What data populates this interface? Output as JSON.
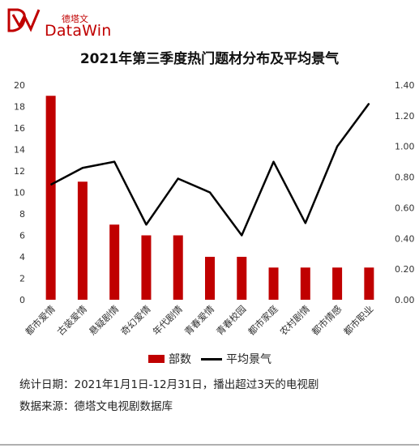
{
  "logo": {
    "sub_text": "德塔文",
    "main_text": "DataWin"
  },
  "chart_data": {
    "type": "bar",
    "title": "2021年第三季度热门题材分布及平均景气",
    "categories": [
      "都市爱情",
      "古装爱情",
      "悬疑剧情",
      "奇幻爱情",
      "年代剧情",
      "青春爱情",
      "青春校园",
      "都市家庭",
      "农村剧情",
      "都市情感",
      "都市职业"
    ],
    "series": [
      {
        "name": "部数",
        "type": "bar",
        "axis": "left",
        "color": "#c00000",
        "values": [
          19,
          11,
          7,
          6,
          6,
          4,
          4,
          3,
          3,
          3,
          3
        ]
      },
      {
        "name": "平均景气",
        "type": "line",
        "axis": "right",
        "color": "#000000",
        "values": [
          0.75,
          0.86,
          0.9,
          0.49,
          0.79,
          0.7,
          0.42,
          0.9,
          0.5,
          1.0,
          1.28
        ]
      }
    ],
    "y_left": {
      "min": 0,
      "max": 20,
      "step": 2,
      "ticks": [
        "0",
        "2",
        "4",
        "6",
        "8",
        "10",
        "12",
        "14",
        "16",
        "18",
        "20"
      ]
    },
    "y_right": {
      "min": 0,
      "max": 1.4,
      "step": 0.2,
      "ticks": [
        "0.00",
        "0.20",
        "0.40",
        "0.60",
        "0.80",
        "1.00",
        "1.20",
        "1.40"
      ]
    },
    "grid": false,
    "legend_position": "bottom"
  },
  "footnotes": {
    "line1": "统计日期：2021年1月1日-12月31日，播出超过3天的电视剧",
    "line2": "数据来源：德塔文电视剧数据库"
  }
}
